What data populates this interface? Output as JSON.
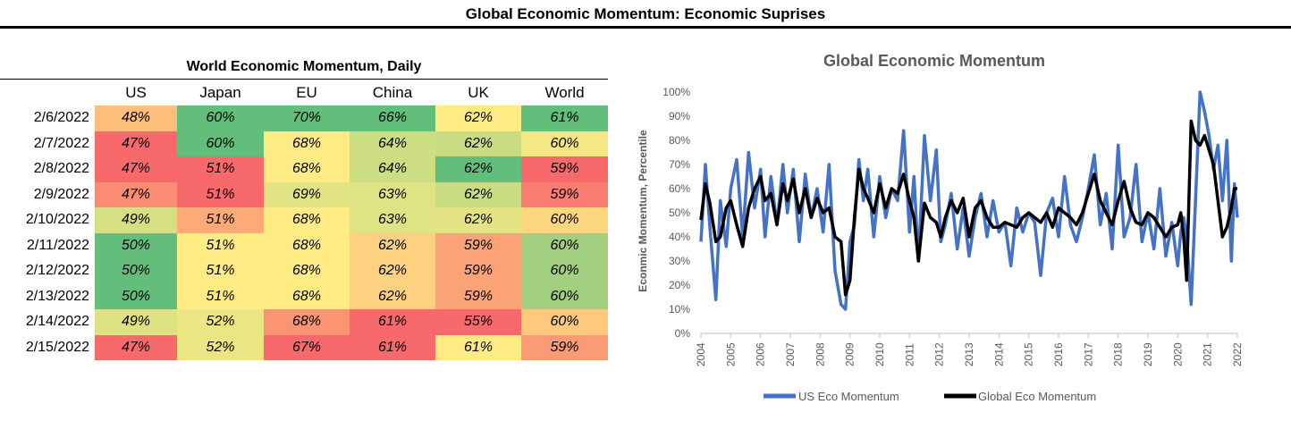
{
  "title": "Global Economic Momentum: Economic Suprises",
  "table": {
    "title": "World Economic Momentum, Daily",
    "columns": [
      "US",
      "Japan",
      "EU",
      "China",
      "UK",
      "World"
    ],
    "rows": [
      {
        "date": "2/6/2022",
        "cells": [
          {
            "text": "48%",
            "color": "#FDBF7B"
          },
          {
            "text": "60%",
            "color": "#63BE7B"
          },
          {
            "text": "70%",
            "color": "#63BE7B"
          },
          {
            "text": "66%",
            "color": "#63BE7B"
          },
          {
            "text": "62%",
            "color": "#FFEB84"
          },
          {
            "text": "61%",
            "color": "#63BE7B"
          }
        ]
      },
      {
        "date": "2/7/2022",
        "cells": [
          {
            "text": "47%",
            "color": "#F8696B"
          },
          {
            "text": "60%",
            "color": "#63BE7B"
          },
          {
            "text": "68%",
            "color": "#FFEB84"
          },
          {
            "text": "64%",
            "color": "#CDDD82"
          },
          {
            "text": "62%",
            "color": "#C9DC81"
          },
          {
            "text": "60%",
            "color": "#F5E884"
          }
        ]
      },
      {
        "date": "2/8/2022",
        "cells": [
          {
            "text": "47%",
            "color": "#F8696B"
          },
          {
            "text": "51%",
            "color": "#F8696B"
          },
          {
            "text": "68%",
            "color": "#FFEB84"
          },
          {
            "text": "64%",
            "color": "#CDDD82"
          },
          {
            "text": "62%",
            "color": "#63BE7B"
          },
          {
            "text": "59%",
            "color": "#F8696B"
          }
        ]
      },
      {
        "date": "2/9/2022",
        "cells": [
          {
            "text": "47%",
            "color": "#FA8D73"
          },
          {
            "text": "51%",
            "color": "#F8696B"
          },
          {
            "text": "69%",
            "color": "#E2E383"
          },
          {
            "text": "63%",
            "color": "#E0E383"
          },
          {
            "text": "62%",
            "color": "#C9DC81"
          },
          {
            "text": "59%",
            "color": "#F97D70"
          }
        ]
      },
      {
        "date": "2/10/2022",
        "cells": [
          {
            "text": "49%",
            "color": "#D4E082"
          },
          {
            "text": "51%",
            "color": "#FCAA78"
          },
          {
            "text": "68%",
            "color": "#FFEB84"
          },
          {
            "text": "63%",
            "color": "#E0E383"
          },
          {
            "text": "62%",
            "color": "#E3E383"
          },
          {
            "text": "60%",
            "color": "#FDD680"
          }
        ]
      },
      {
        "date": "2/11/2022",
        "cells": [
          {
            "text": "50%",
            "color": "#63BE7B"
          },
          {
            "text": "51%",
            "color": "#FFEB84"
          },
          {
            "text": "68%",
            "color": "#FFEB84"
          },
          {
            "text": "62%",
            "color": "#FDD17F"
          },
          {
            "text": "59%",
            "color": "#FBA377"
          },
          {
            "text": "60%",
            "color": "#A2CE7F"
          }
        ]
      },
      {
        "date": "2/12/2022",
        "cells": [
          {
            "text": "50%",
            "color": "#63BE7B"
          },
          {
            "text": "51%",
            "color": "#FFEB84"
          },
          {
            "text": "68%",
            "color": "#FFEB84"
          },
          {
            "text": "62%",
            "color": "#FDD17F"
          },
          {
            "text": "59%",
            "color": "#FBA377"
          },
          {
            "text": "60%",
            "color": "#A2CE7F"
          }
        ]
      },
      {
        "date": "2/13/2022",
        "cells": [
          {
            "text": "50%",
            "color": "#63BE7B"
          },
          {
            "text": "51%",
            "color": "#FFEB84"
          },
          {
            "text": "68%",
            "color": "#FFEB84"
          },
          {
            "text": "62%",
            "color": "#FDD17F"
          },
          {
            "text": "59%",
            "color": "#FBA377"
          },
          {
            "text": "60%",
            "color": "#A2CE7F"
          }
        ]
      },
      {
        "date": "2/14/2022",
        "cells": [
          {
            "text": "49%",
            "color": "#DDE283"
          },
          {
            "text": "52%",
            "color": "#EBE683"
          },
          {
            "text": "68%",
            "color": "#FA9473"
          },
          {
            "text": "61%",
            "color": "#F8696B"
          },
          {
            "text": "55%",
            "color": "#F8696B"
          },
          {
            "text": "60%",
            "color": "#FDC97D"
          }
        ]
      },
      {
        "date": "2/15/2022",
        "cells": [
          {
            "text": "47%",
            "color": "#F8696B"
          },
          {
            "text": "52%",
            "color": "#EBE683"
          },
          {
            "text": "67%",
            "color": "#F8696B"
          },
          {
            "text": "61%",
            "color": "#F8696B"
          },
          {
            "text": "61%",
            "color": "#FFEB84"
          },
          {
            "text": "59%",
            "color": "#FA9B75"
          }
        ]
      }
    ]
  },
  "chart_data": {
    "type": "line",
    "title": "Global Economic Momentum",
    "xlabel": "",
    "ylabel": "Econmic Momentum, Percentile",
    "xlim": [
      2004,
      2022
    ],
    "ylim": [
      0,
      100
    ],
    "y_ticks": [
      "0%",
      "10%",
      "20%",
      "30%",
      "40%",
      "50%",
      "60%",
      "70%",
      "80%",
      "90%",
      "100%"
    ],
    "x_ticks": [
      "2004",
      "2005",
      "2006",
      "2007",
      "2008",
      "2009",
      "2010",
      "2011",
      "2012",
      "2013",
      "2014",
      "2015",
      "2016",
      "2017",
      "2018",
      "2019",
      "2020",
      "2021",
      "2022"
    ],
    "legend_position": "bottom",
    "series": [
      {
        "name": "US Eco Momentum",
        "color": "#4472C4",
        "x": [
          2004.0,
          2004.15,
          2004.3,
          2004.5,
          2004.65,
          2004.85,
          2005.0,
          2005.2,
          2005.4,
          2005.6,
          2005.8,
          2006.0,
          2006.15,
          2006.35,
          2006.55,
          2006.75,
          2006.9,
          2007.1,
          2007.3,
          2007.5,
          2007.7,
          2007.9,
          2008.1,
          2008.3,
          2008.5,
          2008.7,
          2008.85,
          2009.0,
          2009.15,
          2009.3,
          2009.45,
          2009.6,
          2009.8,
          2010.0,
          2010.2,
          2010.4,
          2010.6,
          2010.8,
          2011.0,
          2011.15,
          2011.3,
          2011.5,
          2011.7,
          2011.9,
          2012.05,
          2012.2,
          2012.4,
          2012.6,
          2012.8,
          2013.0,
          2013.2,
          2013.4,
          2013.6,
          2013.8,
          2014.0,
          2014.2,
          2014.4,
          2014.6,
          2014.8,
          2015.0,
          2015.2,
          2015.4,
          2015.6,
          2015.8,
          2016.0,
          2016.2,
          2016.4,
          2016.6,
          2016.8,
          2017.0,
          2017.2,
          2017.4,
          2017.6,
          2017.8,
          2018.0,
          2018.2,
          2018.4,
          2018.6,
          2018.8,
          2019.0,
          2019.2,
          2019.4,
          2019.6,
          2019.8,
          2020.0,
          2020.1,
          2020.2,
          2020.3,
          2020.45,
          2020.6,
          2020.75,
          2020.9,
          2021.05,
          2021.2,
          2021.35,
          2021.5,
          2021.65,
          2021.8,
          2021.9,
          2022.0
        ],
        "values": [
          38,
          70,
          44,
          14,
          55,
          36,
          60,
          72,
          40,
          75,
          52,
          68,
          40,
          65,
          45,
          70,
          50,
          68,
          38,
          66,
          48,
          60,
          42,
          70,
          26,
          12,
          10,
          38,
          45,
          72,
          55,
          68,
          40,
          65,
          48,
          60,
          55,
          84,
          42,
          65,
          30,
          82,
          55,
          76,
          38,
          45,
          58,
          35,
          52,
          32,
          48,
          58,
          40,
          55,
          42,
          46,
          28,
          52,
          42,
          50,
          46,
          24,
          50,
          56,
          40,
          65,
          45,
          38,
          48,
          60,
          74,
          45,
          58,
          35,
          78,
          40,
          48,
          70,
          38,
          50,
          35,
          60,
          32,
          46,
          28,
          42,
          48,
          40,
          12,
          56,
          100,
          92,
          82,
          68,
          78,
          55,
          80,
          30,
          62,
          48
        ]
      },
      {
        "name": "Global Eco Momentum",
        "color": "#000000",
        "x": [
          2004.0,
          2004.15,
          2004.3,
          2004.5,
          2004.65,
          2004.85,
          2005.0,
          2005.2,
          2005.4,
          2005.6,
          2005.8,
          2006.0,
          2006.15,
          2006.35,
          2006.55,
          2006.75,
          2006.9,
          2007.1,
          2007.3,
          2007.5,
          2007.7,
          2007.9,
          2008.1,
          2008.3,
          2008.5,
          2008.7,
          2008.85,
          2009.0,
          2009.15,
          2009.3,
          2009.45,
          2009.6,
          2009.8,
          2010.0,
          2010.2,
          2010.4,
          2010.6,
          2010.8,
          2011.0,
          2011.15,
          2011.3,
          2011.5,
          2011.7,
          2011.9,
          2012.05,
          2012.2,
          2012.4,
          2012.6,
          2012.8,
          2013.0,
          2013.2,
          2013.4,
          2013.6,
          2013.8,
          2014.0,
          2014.2,
          2014.4,
          2014.6,
          2014.8,
          2015.0,
          2015.2,
          2015.4,
          2015.6,
          2015.8,
          2016.0,
          2016.2,
          2016.4,
          2016.6,
          2016.8,
          2017.0,
          2017.2,
          2017.4,
          2017.6,
          2017.8,
          2018.0,
          2018.2,
          2018.4,
          2018.6,
          2018.8,
          2019.0,
          2019.2,
          2019.4,
          2019.6,
          2019.8,
          2020.0,
          2020.1,
          2020.2,
          2020.3,
          2020.45,
          2020.6,
          2020.75,
          2020.9,
          2021.05,
          2021.2,
          2021.35,
          2021.5,
          2021.65,
          2021.8,
          2021.9,
          2022.0
        ],
        "values": [
          47,
          62,
          54,
          38,
          40,
          52,
          55,
          45,
          36,
          52,
          60,
          65,
          55,
          58,
          45,
          62,
          55,
          64,
          50,
          60,
          48,
          56,
          50,
          52,
          40,
          38,
          16,
          22,
          48,
          68,
          60,
          56,
          50,
          62,
          52,
          60,
          58,
          66,
          55,
          48,
          30,
          54,
          48,
          46,
          40,
          48,
          55,
          50,
          56,
          40,
          52,
          55,
          48,
          44,
          44,
          46,
          45,
          44,
          48,
          50,
          48,
          46,
          50,
          44,
          52,
          50,
          48,
          45,
          50,
          58,
          66,
          55,
          50,
          45,
          55,
          63,
          52,
          46,
          45,
          50,
          48,
          44,
          40,
          44,
          45,
          50,
          40,
          22,
          88,
          80,
          78,
          82,
          76,
          70,
          55,
          40,
          44,
          52,
          60,
          60
        ]
      }
    ]
  }
}
